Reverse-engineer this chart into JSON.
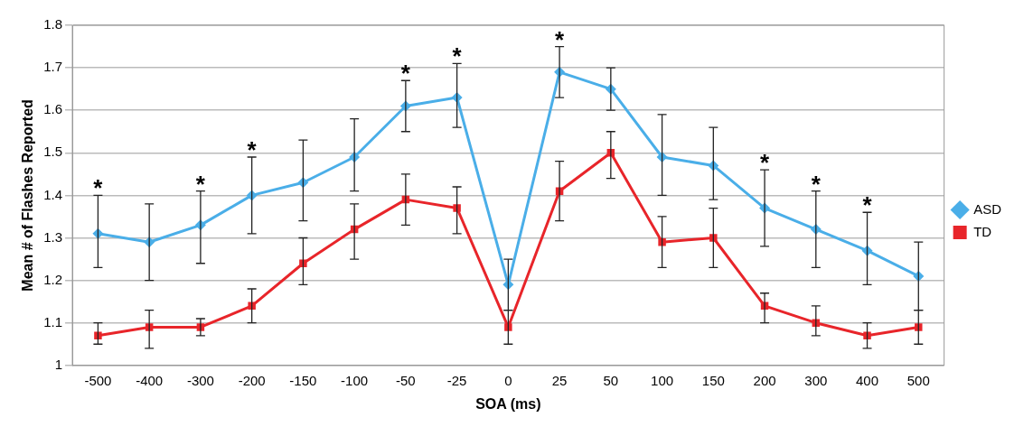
{
  "chart_data": {
    "type": "line",
    "xlabel": "SOA (ms)",
    "ylabel": "Mean # of Flashes Reported",
    "categories": [
      "-500",
      "-400",
      "-300",
      "-200",
      "-150",
      "-100",
      "-50",
      "-25",
      "0",
      "25",
      "50",
      "100",
      "150",
      "200",
      "300",
      "400",
      "500"
    ],
    "series": [
      {
        "name": "ASD",
        "color": "#4aaee8",
        "marker": "diamond",
        "values": [
          1.31,
          1.29,
          1.33,
          1.4,
          1.43,
          1.49,
          1.61,
          1.63,
          1.19,
          1.69,
          1.65,
          1.49,
          1.47,
          1.37,
          1.32,
          1.27,
          1.21
        ],
        "errors": [
          [
            1.23,
            1.4
          ],
          [
            1.2,
            1.38
          ],
          [
            1.24,
            1.41
          ],
          [
            1.31,
            1.49
          ],
          [
            1.34,
            1.53
          ],
          [
            1.41,
            1.58
          ],
          [
            1.55,
            1.67
          ],
          [
            1.56,
            1.71
          ],
          [
            1.13,
            1.25
          ],
          [
            1.63,
            1.75
          ],
          [
            1.6,
            1.7
          ],
          [
            1.4,
            1.59
          ],
          [
            1.39,
            1.56
          ],
          [
            1.28,
            1.46
          ],
          [
            1.23,
            1.41
          ],
          [
            1.19,
            1.36
          ],
          [
            1.13,
            1.29
          ]
        ]
      },
      {
        "name": "TD",
        "color": "#e8252a",
        "marker": "square",
        "values": [
          1.07,
          1.09,
          1.09,
          1.14,
          1.24,
          1.32,
          1.39,
          1.37,
          1.09,
          1.41,
          1.5,
          1.29,
          1.3,
          1.14,
          1.1,
          1.07,
          1.09
        ],
        "errors": [
          [
            1.05,
            1.1
          ],
          [
            1.04,
            1.13
          ],
          [
            1.07,
            1.11
          ],
          [
            1.1,
            1.18
          ],
          [
            1.19,
            1.3
          ],
          [
            1.25,
            1.38
          ],
          [
            1.33,
            1.45
          ],
          [
            1.31,
            1.42
          ],
          [
            1.05,
            1.13
          ],
          [
            1.34,
            1.48
          ],
          [
            1.44,
            1.55
          ],
          [
            1.23,
            1.35
          ],
          [
            1.23,
            1.37
          ],
          [
            1.1,
            1.17
          ],
          [
            1.07,
            1.14
          ],
          [
            1.04,
            1.1
          ],
          [
            1.05,
            1.13
          ]
        ]
      }
    ],
    "ylim": [
      1,
      1.8
    ],
    "yticks": [
      1,
      {
        "value": 1.1,
        "label": "1.1"
      },
      {
        "value": 1.2,
        "label": "1.2"
      },
      {
        "value": 1.3,
        "label": "1.3"
      },
      {
        "value": 1.4,
        "label": "1.4"
      },
      {
        "value": 1.5,
        "label": "1.5"
      },
      {
        "value": 1.6,
        "label": "1.6"
      },
      {
        "value": 1.7,
        "label": "1.7"
      },
      {
        "value": 1.8,
        "label": "1.8"
      }
    ],
    "grid": "y",
    "legend": "right",
    "line_style": "solid",
    "annotations": [
      {
        "text": "*",
        "x": "-500",
        "y": 1.4
      },
      {
        "text": "*",
        "x": "-300",
        "y": 1.41
      },
      {
        "text": "*",
        "x": "-200",
        "y": 1.49
      },
      {
        "text": "*",
        "x": "-50",
        "y": 1.67
      },
      {
        "text": "*",
        "x": "-25",
        "y": 1.71
      },
      {
        "text": "*",
        "x": "25",
        "y": 1.75
      },
      {
        "text": "*",
        "x": "200",
        "y": 1.46
      },
      {
        "text": "*",
        "x": "300",
        "y": 1.41
      },
      {
        "text": "*",
        "x": "400",
        "y": 1.36
      }
    ]
  }
}
